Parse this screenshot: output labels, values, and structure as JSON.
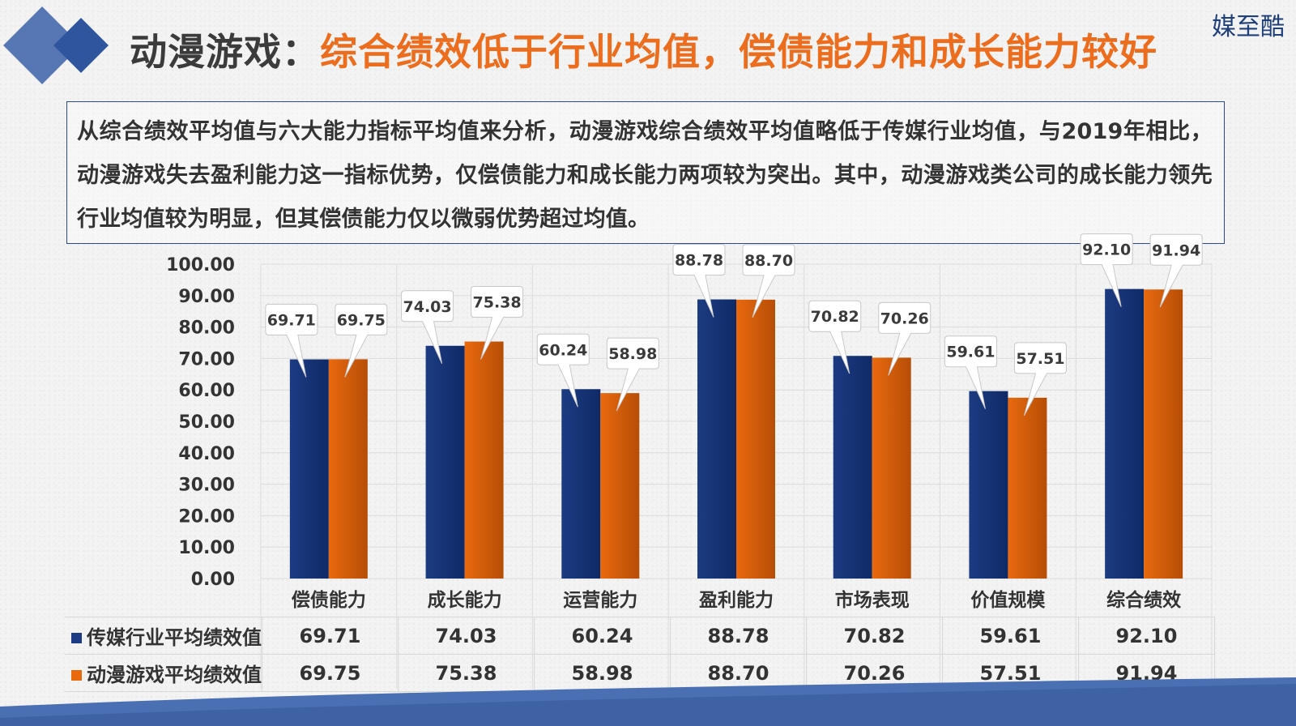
{
  "header": {
    "title_prefix": "动漫游戏：",
    "title_highlight": "综合绩效低于行业均值，偿债能力和成长能力较好",
    "logo": "媒至酷"
  },
  "summary": "从综合绩效平均值与六大能力指标平均值来分析，动漫游戏综合绩效平均值略低于传媒行业均值，与2019年相比，动漫游戏失去盈利能力这一指标优势，仅偿债能力和成长能力两项较为突出。其中，动漫游戏类公司的成长能力领先行业均值较为明显，但其偿债能力仅以微弱优势超过均值。",
  "colors": {
    "navy": "#1c3b82",
    "orange": "#e9690f",
    "title_accent": "#ec6d1d",
    "title_dark": "#3b3b3b",
    "deco_blue": "#3a5fa8"
  },
  "chart_data": {
    "type": "bar",
    "categories": [
      "偿债能力",
      "成长能力",
      "运营能力",
      "盈利能力",
      "市场表现",
      "价值规模",
      "综合绩效"
    ],
    "series": [
      {
        "name": "传媒行业平均绩效值",
        "values": [
          69.71,
          74.03,
          60.24,
          88.78,
          70.82,
          59.61,
          92.1
        ],
        "labels": [
          "69.71",
          "74.03",
          "60.24",
          "88.78",
          "70.82",
          "59.61",
          "92.10"
        ],
        "color": "#1c3b82"
      },
      {
        "name": "动漫游戏平均绩效值",
        "values": [
          69.75,
          75.38,
          58.98,
          88.7,
          70.26,
          57.51,
          91.94
        ],
        "labels": [
          "69.75",
          "75.38",
          "58.98",
          "88.70",
          "70.26",
          "57.51",
          "91.94"
        ],
        "color": "#e9690f"
      }
    ],
    "ylim": [
      0,
      100
    ],
    "yticks": [
      "0.00",
      "10.00",
      "20.00",
      "30.00",
      "40.00",
      "50.00",
      "60.00",
      "70.00",
      "80.00",
      "90.00",
      "100.00"
    ],
    "grid": true,
    "data_table": true,
    "title": "",
    "xlabel": "",
    "ylabel": ""
  }
}
